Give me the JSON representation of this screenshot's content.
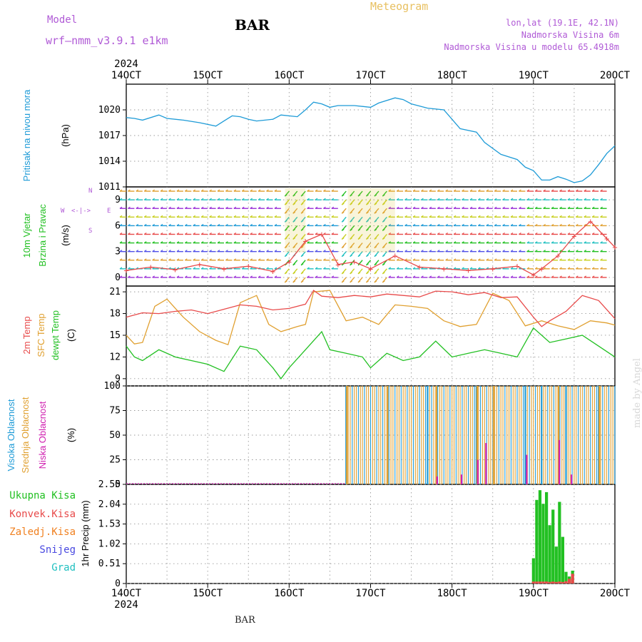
{
  "header": {
    "model_label": "Model",
    "model_name": "wrf—nmm_v3.9.1 e1km",
    "station": "BAR",
    "meteogram_title": "Meteogram",
    "lonlat": "lon,lat (19.1E, 42.1N)",
    "elevation": "Nadmorska Visina 6m",
    "model_elevation": "Nadmorska Visina u modelu 65.4918m",
    "footer_station": "BAR",
    "credit": "made by Angel"
  },
  "colors": {
    "pressure": "#1e9bd7",
    "temp2m": "#e84a4a",
    "sfc_temp": "#e0a030",
    "dewpt": "#22c022",
    "cloud_high": "#1e9bd7",
    "cloud_mid": "#e0a030",
    "cloud_low": "#d020b0",
    "precip_total": "#22c022",
    "precip_conv": "#e84a4a",
    "precip_strat": "#f08020",
    "snow": "#4848e0",
    "graupel": "#20c0c0",
    "header_purple": "#b05ad6",
    "meteogram_gold": "#e8c060"
  },
  "chart_data": [
    {
      "type": "line",
      "id": "pressure",
      "ylabel": [
        "Pritisak na nivou mora",
        "(hPa)"
      ],
      "ylim": [
        1011,
        1023
      ],
      "yticks": [
        1011,
        1014,
        1017,
        1020
      ],
      "x_top_labels": [
        "14OCT",
        "15OCT",
        "16OCT",
        "17OCT",
        "18OCT",
        "19OCT",
        "20OCT"
      ],
      "x_top_year": "2024",
      "series": [
        {
          "x": [
            14.0,
            14.1,
            14.2,
            14.4,
            14.5,
            14.7,
            14.9,
            15.1,
            15.2,
            15.3,
            15.4,
            15.5,
            15.6,
            15.8,
            15.9,
            16.1,
            16.2,
            16.3,
            16.4,
            16.5,
            16.6,
            16.8,
            17.0,
            17.1,
            17.3,
            17.4,
            17.5,
            17.7,
            17.9,
            18.0,
            18.1,
            18.3,
            18.4,
            18.6,
            18.8,
            18.9,
            19.0,
            19.1,
            19.2,
            19.3,
            19.4,
            19.5,
            19.6,
            19.7,
            19.8,
            19.9,
            20.0
          ],
          "values": [
            1019.1,
            1019.0,
            1018.8,
            1019.4,
            1019.0,
            1018.8,
            1018.5,
            1018.1,
            1018.7,
            1019.3,
            1019.2,
            1018.9,
            1018.7,
            1018.9,
            1019.4,
            1019.2,
            1020.0,
            1020.9,
            1020.7,
            1020.3,
            1020.5,
            1020.5,
            1020.3,
            1020.8,
            1021.4,
            1021.2,
            1020.7,
            1020.2,
            1020.0,
            1018.9,
            1017.8,
            1017.4,
            1016.2,
            1014.8,
            1014.2,
            1013.3,
            1012.9,
            1011.8,
            1011.8,
            1012.2,
            1011.9,
            1011.5,
            1011.7,
            1012.4,
            1013.6,
            1014.9,
            1015.8
          ]
        }
      ]
    },
    {
      "type": "scatter",
      "id": "wind",
      "ylabel": [
        "10m Vjetar",
        "Brzina i Pravac",
        "(m/s)"
      ],
      "compass": [
        "W",
        "<-|->",
        "E",
        "N",
        "S"
      ],
      "ylim": [
        -1,
        10.5
      ],
      "yticks": [
        0,
        3,
        6,
        9
      ],
      "series": [
        {
          "name": "speed",
          "x": [
            14.0,
            14.3,
            14.6,
            14.9,
            15.2,
            15.5,
            15.8,
            16.0,
            16.2,
            16.4,
            16.6,
            16.8,
            17.0,
            17.3,
            17.6,
            17.9,
            18.2,
            18.5,
            18.8,
            19.0,
            19.1,
            19.3,
            19.5,
            19.7,
            19.9,
            20.0
          ],
          "values": [
            0.8,
            1.2,
            0.9,
            1.5,
            1.0,
            1.3,
            0.7,
            1.8,
            4.2,
            5.0,
            1.5,
            1.8,
            1.0,
            2.5,
            1.2,
            1.0,
            0.8,
            1.0,
            1.3,
            0.3,
            1.0,
            2.5,
            4.8,
            6.5,
            4.5,
            3.5
          ]
        }
      ]
    },
    {
      "type": "line",
      "id": "temperature",
      "ylabel": [
        "2m Temp",
        "SFC Temp",
        "dewpt Temp",
        "(C)"
      ],
      "ylim": [
        8,
        21.8
      ],
      "yticks": [
        9,
        12,
        15,
        18,
        21
      ],
      "series": [
        {
          "name": "2m Temp",
          "x": [
            14.0,
            14.2,
            14.4,
            14.6,
            14.8,
            15.0,
            15.2,
            15.4,
            15.6,
            15.8,
            16.0,
            16.2,
            16.3,
            16.4,
            16.6,
            16.8,
            17.0,
            17.2,
            17.4,
            17.6,
            17.8,
            18.0,
            18.2,
            18.4,
            18.6,
            18.8,
            19.0,
            19.1,
            19.2,
            19.4,
            19.6,
            19.8,
            20.0
          ],
          "values": [
            17.5,
            18.1,
            18.0,
            18.3,
            18.5,
            18.0,
            18.6,
            19.2,
            19.0,
            18.5,
            18.7,
            19.3,
            21.2,
            20.4,
            20.2,
            20.5,
            20.3,
            20.7,
            20.5,
            20.3,
            21.1,
            21.0,
            20.6,
            20.9,
            20.2,
            20.3,
            17.5,
            16.2,
            17.0,
            18.3,
            20.5,
            19.8,
            17.3
          ]
        },
        {
          "name": "SFC Temp",
          "x": [
            14.0,
            14.1,
            14.2,
            14.35,
            14.5,
            14.7,
            14.9,
            15.1,
            15.25,
            15.4,
            15.6,
            15.75,
            15.9,
            16.1,
            16.2,
            16.3,
            16.5,
            16.7,
            16.9,
            17.1,
            17.3,
            17.5,
            17.7,
            17.9,
            18.1,
            18.3,
            18.5,
            18.7,
            18.9,
            19.1,
            19.3,
            19.5,
            19.7,
            19.9,
            20.0
          ],
          "values": [
            15.0,
            13.8,
            14.0,
            19.0,
            20.0,
            17.5,
            15.5,
            14.3,
            13.7,
            19.5,
            20.5,
            16.5,
            15.5,
            16.2,
            16.5,
            21.0,
            21.2,
            17.0,
            17.5,
            16.5,
            19.2,
            19.0,
            18.7,
            17.0,
            16.2,
            16.5,
            20.8,
            19.8,
            16.3,
            17.0,
            16.3,
            15.8,
            17.0,
            16.7,
            16.4
          ]
        },
        {
          "name": "dewpt Temp",
          "x": [
            14.0,
            14.1,
            14.2,
            14.4,
            14.6,
            14.8,
            15.0,
            15.2,
            15.4,
            15.6,
            15.8,
            15.9,
            16.0,
            16.2,
            16.4,
            16.5,
            16.7,
            16.9,
            17.0,
            17.2,
            17.4,
            17.6,
            17.8,
            18.0,
            18.2,
            18.4,
            18.6,
            18.8,
            19.0,
            19.2,
            19.4,
            19.6,
            19.8,
            20.0
          ],
          "values": [
            13.5,
            12.0,
            11.5,
            13.0,
            12.0,
            11.5,
            11.0,
            10.0,
            13.5,
            13.0,
            10.5,
            9.0,
            10.5,
            13.0,
            15.5,
            13.0,
            12.5,
            12.0,
            10.5,
            12.5,
            11.5,
            12.0,
            14.2,
            12.0,
            12.5,
            13.0,
            12.5,
            12.0,
            16.0,
            14.0,
            14.5,
            15.0,
            13.5,
            12.0
          ]
        }
      ]
    },
    {
      "type": "bar",
      "id": "clouds",
      "ylabel": [
        "Visoka Oblacnost",
        "Srednja Oblacnost",
        "Niska Oblacnost",
        "(%)"
      ],
      "ylim": [
        0,
        100
      ],
      "yticks": [
        0,
        25,
        50,
        75,
        100
      ],
      "cloud_onset": 16.7,
      "series": [
        {
          "name": "Visoka Oblacnost",
          "x": [
            16.7,
            17.7,
            18.3,
            18.9,
            19.1,
            19.4,
            19.8
          ],
          "values": [
            100,
            100,
            100,
            100,
            100,
            100,
            100
          ]
        },
        {
          "name": "Srednja Oblacnost",
          "x": [
            16.7,
            17.2,
            17.8,
            18.3,
            18.5,
            19.3,
            19.8
          ],
          "values": [
            100,
            100,
            100,
            100,
            100,
            100,
            100
          ]
        },
        {
          "name": "Niska Oblacnost",
          "x": [
            17.8,
            18.1,
            18.3,
            18.4,
            18.9,
            19.3,
            19.45
          ],
          "values": [
            8,
            10,
            25,
            42,
            30,
            45,
            10
          ]
        }
      ]
    },
    {
      "type": "bar",
      "id": "precip",
      "ylabel": [
        "1hr Precip (mm)"
      ],
      "legend": [
        "Ukupna Kisa",
        "Konvek.Kisa",
        "Zaledj.Kisa",
        "Snijeg",
        "Grad"
      ],
      "ylim": [
        0,
        2.55
      ],
      "yticks": [
        0,
        0.51,
        1.02,
        1.53,
        2.04,
        2.55
      ],
      "x_bottom_labels": [
        "14OCT",
        "15OCT",
        "16OCT",
        "17OCT",
        "18OCT",
        "19OCT",
        "20OCT"
      ],
      "x_bottom_year": "2024",
      "series": [
        {
          "name": "Ukupna Kisa",
          "x": [
            19.0,
            19.04,
            19.08,
            19.12,
            19.16,
            19.2,
            19.24,
            19.28,
            19.32,
            19.36,
            19.4,
            19.44,
            19.48
          ],
          "values": [
            0.65,
            2.15,
            2.4,
            2.05,
            2.35,
            1.5,
            1.9,
            0.95,
            2.1,
            1.2,
            0.3,
            0.18,
            0.33
          ]
        },
        {
          "name": "Konvek.Kisa",
          "x": [
            19.0,
            19.04,
            19.08,
            19.12,
            19.16,
            19.2,
            19.24,
            19.28,
            19.32,
            19.36,
            19.4,
            19.44,
            19.48
          ],
          "values": [
            0.05,
            0.05,
            0.05,
            0.05,
            0.05,
            0.04,
            0.05,
            0.04,
            0.05,
            0.04,
            0.06,
            0.12,
            0.25
          ]
        }
      ]
    }
  ]
}
